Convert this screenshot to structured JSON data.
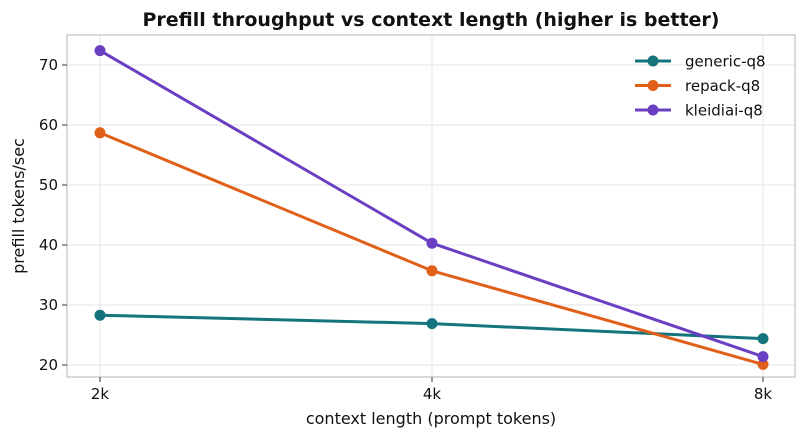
{
  "chart_data": {
    "type": "line",
    "title": "Prefill throughput vs context length (higher is better)",
    "xlabel": "context length (prompt tokens)",
    "ylabel": "prefill tokens/sec",
    "categories": [
      "2k",
      "4k",
      "8k"
    ],
    "ylim": [
      18,
      75
    ],
    "yticks": [
      20,
      30,
      40,
      50,
      60,
      70
    ],
    "grid": true,
    "legend_position": "top-right",
    "series": [
      {
        "name": "generic-q8",
        "color": "#14737d",
        "values": [
          28.3,
          26.9,
          24.4
        ]
      },
      {
        "name": "repack-q8",
        "color": "#e0601a",
        "values": [
          58.7,
          35.7,
          20.1
        ]
      },
      {
        "name": "kleidiai-q8",
        "color": "#6a3fc2",
        "values": [
          72.4,
          40.3,
          21.4
        ]
      }
    ]
  }
}
